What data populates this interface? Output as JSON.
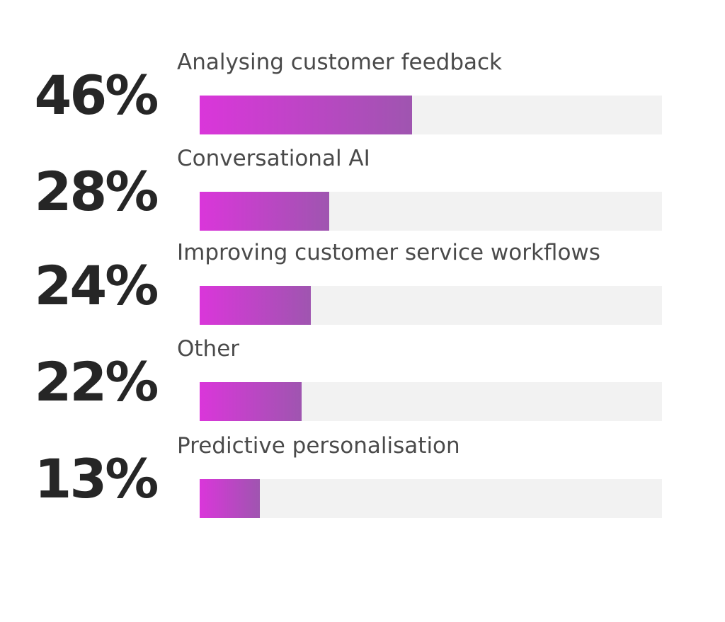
{
  "chart_data": {
    "type": "bar",
    "orientation": "horizontal",
    "categories": [
      "Analysing customer feedback",
      "Conversational AI",
      "Improving customer service workflows",
      "Other",
      "Predictive personalisation"
    ],
    "values": [
      46,
      28,
      24,
      22,
      13
    ],
    "value_labels": [
      "46%",
      "28%",
      "24%",
      "22%",
      "13%"
    ],
    "xlim": [
      0,
      100
    ],
    "grid": false,
    "legend": "none",
    "colors": {
      "fill_start": "#da36da",
      "fill_end": "#9f55b0",
      "track": "#f2f2f2",
      "value_text": "#262626",
      "label_text": "#4a4a4a"
    }
  }
}
